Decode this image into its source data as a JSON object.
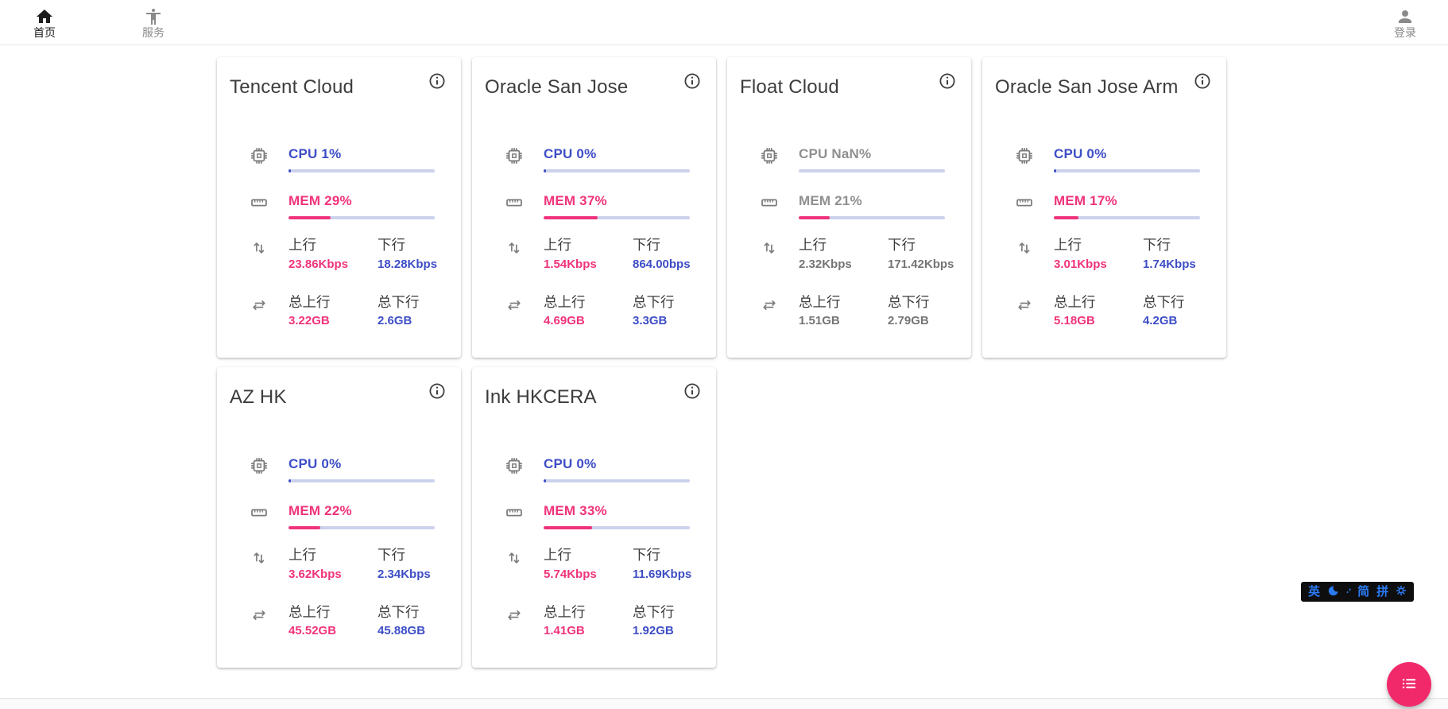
{
  "nav": {
    "home_label": "首页",
    "services_label": "服务",
    "login_label": "登录"
  },
  "colors": {
    "accent_blue": "#3D4EC6",
    "accent_pink": "#F0337A",
    "fab_pink": "#F1296B",
    "bar_track": "#CCD1EC",
    "muted_text": "#757575",
    "ime_blue": "#2B7BF3"
  },
  "card_labels": {
    "up": "上行",
    "down": "下行",
    "total_up": "总上行",
    "total_down": "总下行"
  },
  "servers": [
    {
      "name": "Tencent Cloud",
      "cpu_label": "CPU 1%",
      "cpu_pct": 1,
      "mem_label": "MEM 29%",
      "mem_pct": 29,
      "up_value": "23.86Kbps",
      "down_value": "18.28Kbps",
      "total_up_value": "3.22GB",
      "total_down_value": "2.6GB",
      "muted": false
    },
    {
      "name": "Oracle San Jose",
      "cpu_label": "CPU 0%",
      "cpu_pct": 0,
      "mem_label": "MEM 37%",
      "mem_pct": 37,
      "up_value": "1.54Kbps",
      "down_value": "864.00bps",
      "total_up_value": "4.69GB",
      "total_down_value": "3.3GB",
      "muted": false
    },
    {
      "name": "Float Cloud",
      "cpu_label": "CPU NaN%",
      "cpu_pct": 0,
      "mem_label": "MEM 21%",
      "mem_pct": 21,
      "up_value": "2.32Kbps",
      "down_value": "171.42Kbps",
      "total_up_value": "1.51GB",
      "total_down_value": "2.79GB",
      "muted": true
    },
    {
      "name": "Oracle San Jose Arm",
      "cpu_label": "CPU 0%",
      "cpu_pct": 0,
      "mem_label": "MEM 17%",
      "mem_pct": 17,
      "up_value": "3.01Kbps",
      "down_value": "1.74Kbps",
      "total_up_value": "5.18GB",
      "total_down_value": "4.2GB",
      "muted": false
    },
    {
      "name": "AZ HK",
      "cpu_label": "CPU 0%",
      "cpu_pct": 0,
      "mem_label": "MEM 22%",
      "mem_pct": 22,
      "up_value": "3.62Kbps",
      "down_value": "2.34Kbps",
      "total_up_value": "45.52GB",
      "total_down_value": "45.88GB",
      "muted": false
    },
    {
      "name": "Ink HKCERA",
      "cpu_label": "CPU 0%",
      "cpu_pct": 0,
      "mem_label": "MEM 33%",
      "mem_pct": 33,
      "up_value": "5.74Kbps",
      "down_value": "11.69Kbps",
      "total_up_value": "1.41GB",
      "total_down_value": "1.92GB",
      "muted": false
    }
  ],
  "ime": {
    "lang_indicator": "英",
    "punctuation_indicator": "·’",
    "simplified_indicator": "简",
    "pinyin_indicator": "拼"
  }
}
